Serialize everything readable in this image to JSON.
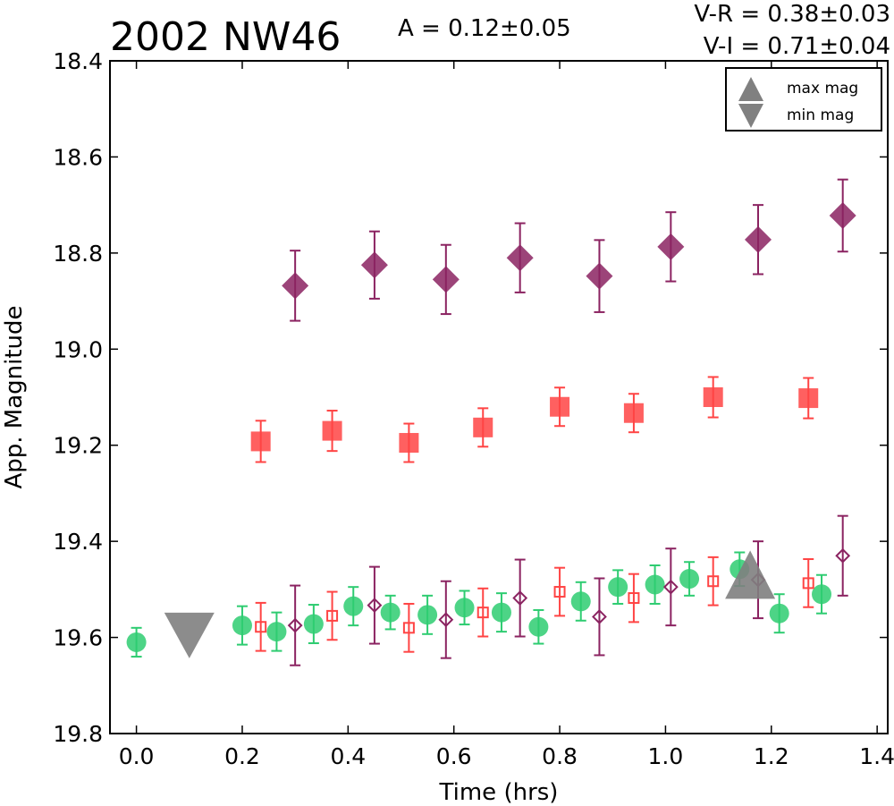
{
  "chart_data": {
    "type": "scatter",
    "title": "2002 NW46",
    "annotations": {
      "amplitude": "A  = 0.12±0.05",
      "v_r": "V-R = 0.38±0.03",
      "v_i": "V-I  = 0.71±0.04"
    },
    "xlabel": "Time (hrs)",
    "ylabel": "App. Magnitude",
    "xlim": [
      -0.05,
      1.42
    ],
    "ylim": [
      19.8,
      18.4
    ],
    "y_inverted": true,
    "xticks": [
      "0.0",
      "0.2",
      "0.4",
      "0.6",
      "0.8",
      "1.0",
      "1.2",
      "1.4"
    ],
    "yticks": [
      "18.4",
      "18.6",
      "18.8",
      "19.0",
      "19.2",
      "19.4",
      "19.6",
      "19.8"
    ],
    "legend": {
      "position": "top-right",
      "entries": [
        {
          "label": "max mag",
          "marker": "triangle-up",
          "color": "#808080"
        },
        {
          "label": "min mag",
          "marker": "triangle-down",
          "color": "#808080"
        }
      ]
    },
    "series": [
      {
        "marker": "circle",
        "color": "#2ecc71",
        "filled": true,
        "points": [
          {
            "x": 0.0,
            "y": 19.61,
            "err": 0.03
          },
          {
            "x": 0.2,
            "y": 19.575,
            "err": 0.04
          },
          {
            "x": 0.265,
            "y": 19.588,
            "err": 0.04
          },
          {
            "x": 0.335,
            "y": 19.572,
            "err": 0.04
          },
          {
            "x": 0.41,
            "y": 19.535,
            "err": 0.04
          },
          {
            "x": 0.48,
            "y": 19.548,
            "err": 0.035
          },
          {
            "x": 0.55,
            "y": 19.553,
            "err": 0.04
          },
          {
            "x": 0.62,
            "y": 19.538,
            "err": 0.035
          },
          {
            "x": 0.69,
            "y": 19.548,
            "err": 0.04
          },
          {
            "x": 0.76,
            "y": 19.578,
            "err": 0.035
          },
          {
            "x": 0.84,
            "y": 19.525,
            "err": 0.04
          },
          {
            "x": 0.91,
            "y": 19.495,
            "err": 0.035
          },
          {
            "x": 0.98,
            "y": 19.49,
            "err": 0.04
          },
          {
            "x": 1.045,
            "y": 19.478,
            "err": 0.035
          },
          {
            "x": 1.14,
            "y": 19.458,
            "err": 0.035
          },
          {
            "x": 1.215,
            "y": 19.55,
            "err": 0.04
          },
          {
            "x": 1.295,
            "y": 19.51,
            "err": 0.04
          }
        ]
      },
      {
        "marker": "square",
        "color": "#ff4444",
        "filled": true,
        "points": [
          {
            "x": 0.235,
            "y": 19.192,
            "err": 0.043
          },
          {
            "x": 0.37,
            "y": 19.17,
            "err": 0.042
          },
          {
            "x": 0.515,
            "y": 19.195,
            "err": 0.04
          },
          {
            "x": 0.655,
            "y": 19.163,
            "err": 0.04
          },
          {
            "x": 0.8,
            "y": 19.12,
            "err": 0.04
          },
          {
            "x": 0.94,
            "y": 19.133,
            "err": 0.04
          },
          {
            "x": 1.09,
            "y": 19.1,
            "err": 0.042
          },
          {
            "x": 1.27,
            "y": 19.102,
            "err": 0.042
          }
        ]
      },
      {
        "marker": "diamond",
        "color": "#8b2361",
        "filled": true,
        "points": [
          {
            "x": 0.3,
            "y": 18.868,
            "err": 0.073
          },
          {
            "x": 0.45,
            "y": 18.825,
            "err": 0.07
          },
          {
            "x": 0.585,
            "y": 18.855,
            "err": 0.072
          },
          {
            "x": 0.725,
            "y": 18.81,
            "err": 0.072
          },
          {
            "x": 0.875,
            "y": 18.848,
            "err": 0.075
          },
          {
            "x": 1.01,
            "y": 18.787,
            "err": 0.072
          },
          {
            "x": 1.175,
            "y": 18.772,
            "err": 0.072
          },
          {
            "x": 1.335,
            "y": 18.722,
            "err": 0.075
          }
        ]
      },
      {
        "marker": "square",
        "color": "#ff4444",
        "filled": false,
        "points": [
          {
            "x": 0.235,
            "y": 19.578,
            "err": 0.05
          },
          {
            "x": 0.37,
            "y": 19.555,
            "err": 0.05
          },
          {
            "x": 0.515,
            "y": 19.58,
            "err": 0.05
          },
          {
            "x": 0.655,
            "y": 19.548,
            "err": 0.05
          },
          {
            "x": 0.8,
            "y": 19.505,
            "err": 0.05
          },
          {
            "x": 0.94,
            "y": 19.518,
            "err": 0.05
          },
          {
            "x": 1.09,
            "y": 19.483,
            "err": 0.05
          },
          {
            "x": 1.27,
            "y": 19.487,
            "err": 0.05
          }
        ]
      },
      {
        "marker": "diamond",
        "color": "#8b2361",
        "filled": false,
        "points": [
          {
            "x": 0.3,
            "y": 19.575,
            "err": 0.083
          },
          {
            "x": 0.45,
            "y": 19.533,
            "err": 0.08
          },
          {
            "x": 0.585,
            "y": 19.563,
            "err": 0.08
          },
          {
            "x": 0.725,
            "y": 19.518,
            "err": 0.08
          },
          {
            "x": 0.875,
            "y": 19.557,
            "err": 0.08
          },
          {
            "x": 1.01,
            "y": 19.495,
            "err": 0.08
          },
          {
            "x": 1.175,
            "y": 19.48,
            "err": 0.08
          },
          {
            "x": 1.335,
            "y": 19.43,
            "err": 0.083
          }
        ]
      }
    ],
    "extrema_markers": [
      {
        "kind": "min mag",
        "marker": "triangle-down",
        "x": 0.1,
        "y": 19.595,
        "color": "#808080"
      },
      {
        "kind": "max mag",
        "marker": "triangle-up",
        "x": 1.16,
        "y": 19.475,
        "color": "#808080"
      }
    ]
  }
}
